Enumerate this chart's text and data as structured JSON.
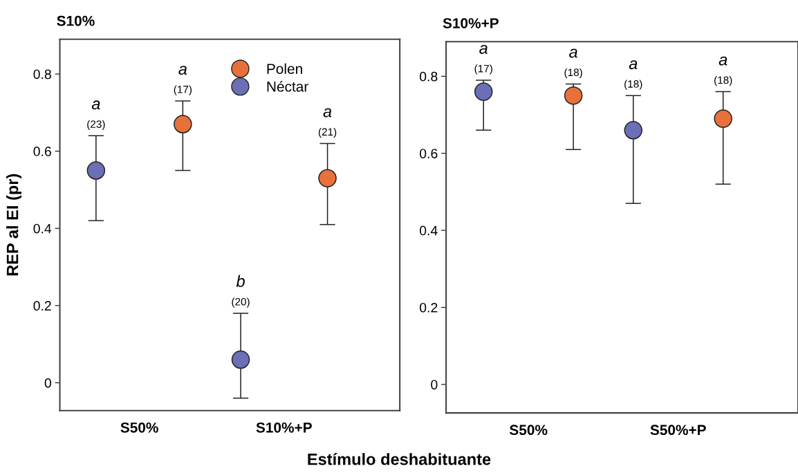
{
  "chart_data": [
    {
      "type": "scatter",
      "title": "S10%",
      "ylabel": "REP al EI (pr)",
      "xlabel": "Estímulo deshabituante",
      "categories": [
        "S50%",
        "S10%+P"
      ],
      "marker": "circle",
      "legend": "top",
      "grid": false,
      "ylim": [
        -0.072,
        0.89
      ],
      "yticks": [
        0,
        0.2,
        0.4,
        0.6,
        0.8
      ],
      "series": [
        {
          "name": "Polen",
          "color": "#e8703a",
          "values": [
            0.67,
            0.53
          ],
          "errors": [
            [
              0.55,
              0.73
            ],
            [
              0.41,
              0.62
            ]
          ]
        },
        {
          "name": "Néctar",
          "color": "#6b6fb5",
          "values": [
            0.55,
            0.06
          ],
          "errors": [
            [
              0.42,
              0.64
            ],
            [
              -0.04,
              0.18
            ]
          ]
        }
      ],
      "annotations": [
        "(23)",
        "a",
        "(17)",
        "a",
        "(20)",
        "b",
        "(21)",
        "a"
      ]
    },
    {
      "type": "scatter",
      "title": "S10%+P",
      "categories": [
        "S50%",
        "S50%+P"
      ],
      "marker": "circle",
      "grid": false,
      "ylim": [
        -0.074,
        0.89
      ],
      "yticks": [
        0,
        0.2,
        0.4,
        0.6,
        0.8
      ],
      "series": [
        {
          "color": "#e8703a",
          "values": [
            0.75,
            0.69
          ],
          "errors": [
            [
              0.61,
              0.78
            ],
            [
              0.52,
              0.76
            ]
          ]
        },
        {
          "color": "#6b6fb5",
          "values": [
            0.76,
            0.66
          ],
          "errors": [
            [
              0.66,
              0.79
            ],
            [
              0.47,
              0.75
            ]
          ]
        }
      ],
      "annotations": [
        "(17)",
        "a",
        "(18)",
        "a",
        "(18)",
        "a",
        "(18)",
        "a"
      ]
    }
  ]
}
